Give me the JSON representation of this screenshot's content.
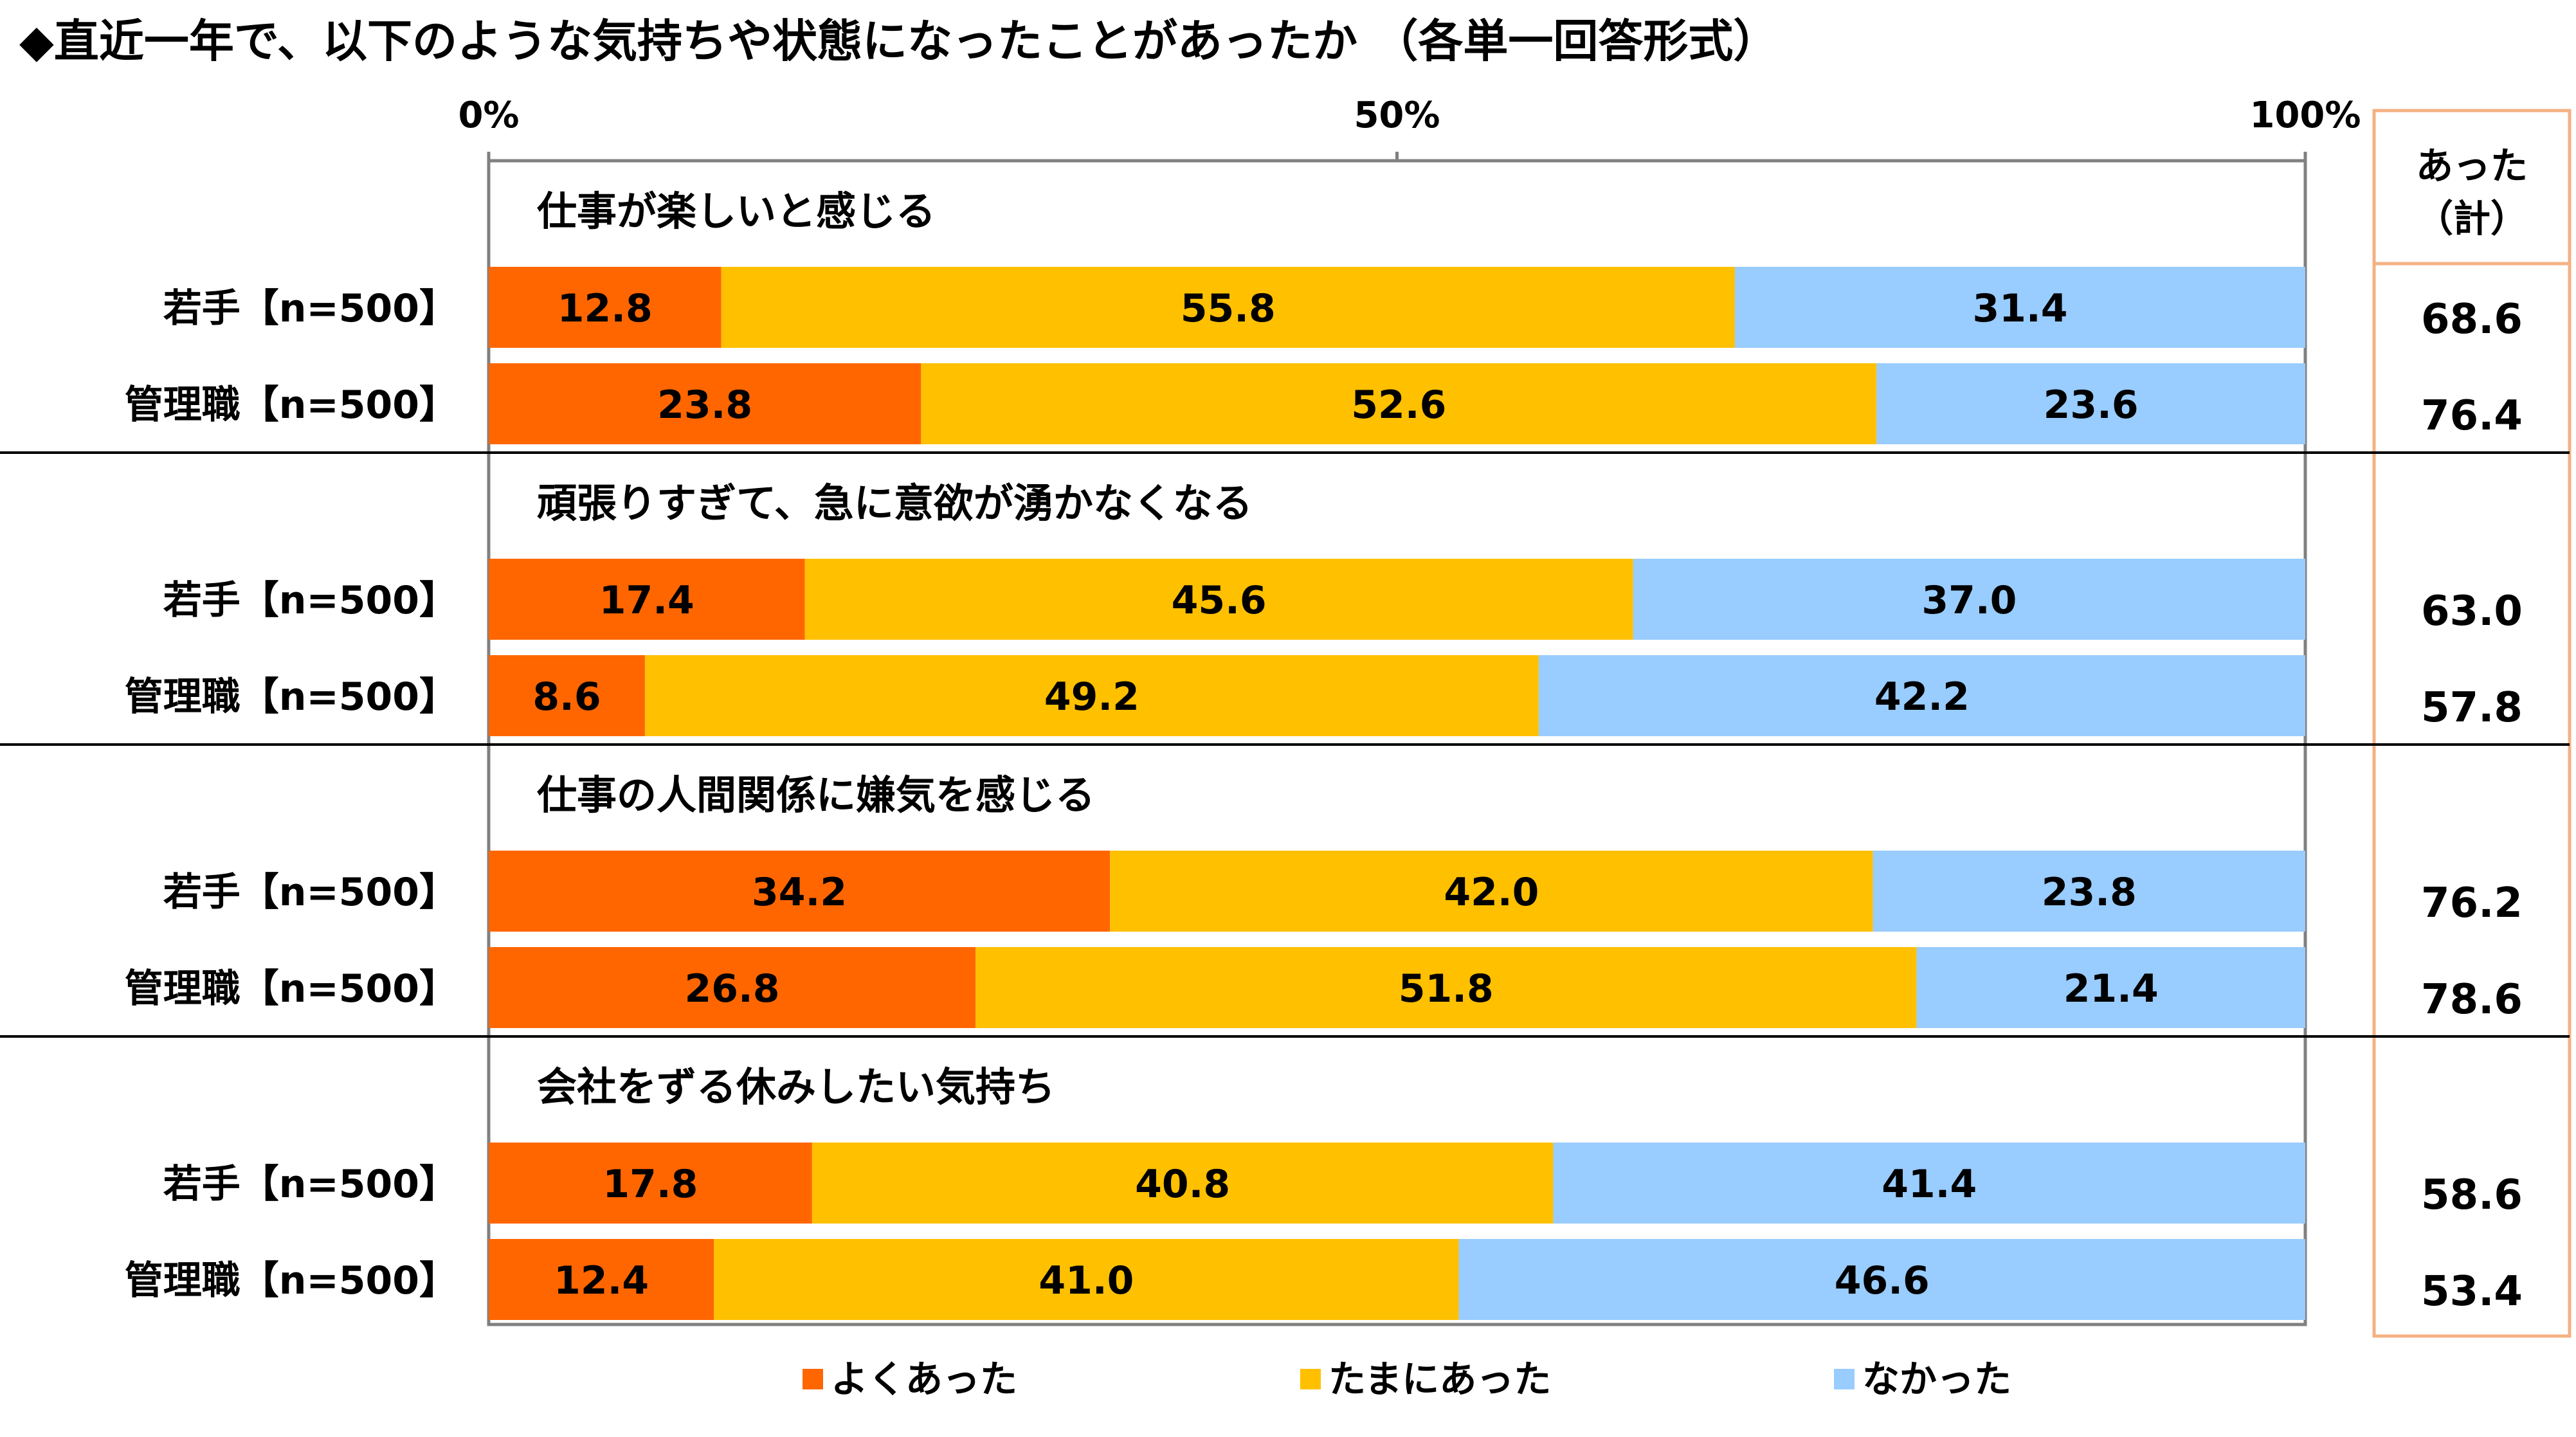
{
  "title": "◆直近一年で、以下のような気持ちや状態になったことがあったか （各単一回答形式）",
  "chart_data": {
    "type": "bar",
    "orientation": "horizontal",
    "stacked": true,
    "xlim": [
      0,
      100
    ],
    "xticks": [
      "0%",
      "50%",
      "100%"
    ],
    "legend_position": "bottom",
    "colors": {
      "よくあった": "#FF6600",
      "たまにあった": "#FFC000",
      "なかった": "#99CCFF"
    },
    "series_names": [
      "よくあった",
      "たまにあった",
      "なかった"
    ],
    "total_header": "あった\n（計）",
    "groups": [
      {
        "title": "仕事が楽しいと感じる",
        "rows": [
          {
            "label": "若手【n=500】",
            "values": [
              12.8,
              55.8,
              31.4
            ],
            "total": "68.6"
          },
          {
            "label": "管理職【n=500】",
            "values": [
              23.8,
              52.6,
              23.6
            ],
            "total": "76.4"
          }
        ]
      },
      {
        "title": "頑張りすぎて、急に意欲が湧かなくなる",
        "rows": [
          {
            "label": "若手【n=500】",
            "values": [
              17.4,
              45.6,
              37.0
            ],
            "total": "63.0"
          },
          {
            "label": "管理職【n=500】",
            "values": [
              8.6,
              49.2,
              42.2
            ],
            "total": "57.8"
          }
        ]
      },
      {
        "title": "仕事の人間関係に嫌気を感じる",
        "rows": [
          {
            "label": "若手【n=500】",
            "values": [
              34.2,
              42.0,
              23.8
            ],
            "total": "76.2"
          },
          {
            "label": "管理職【n=500】",
            "values": [
              26.8,
              51.8,
              21.4
            ],
            "total": "78.6"
          }
        ]
      },
      {
        "title": "会社をずる休みしたい気持ち",
        "rows": [
          {
            "label": "若手【n=500】",
            "values": [
              17.8,
              40.8,
              41.4
            ],
            "total": "58.6"
          },
          {
            "label": "管理職【n=500】",
            "values": [
              12.4,
              41.0,
              46.6
            ],
            "total": "53.4"
          }
        ]
      }
    ]
  }
}
